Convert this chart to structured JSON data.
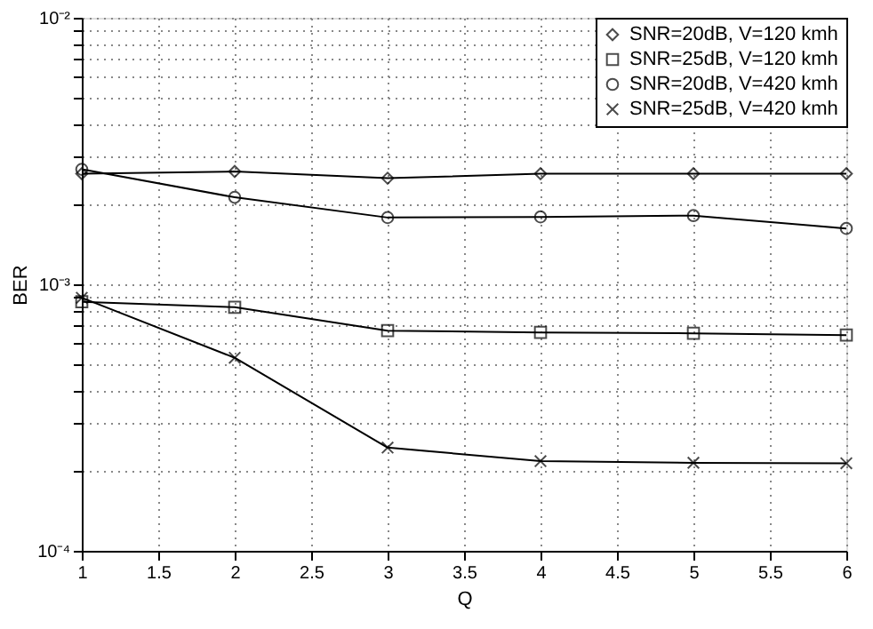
{
  "chart_data": {
    "type": "line",
    "xlabel": "Q",
    "ylabel": "BER",
    "x": [
      1,
      2,
      3,
      4,
      5,
      6
    ],
    "series": [
      {
        "name": "SNR=20dB, V=120 kmh",
        "color": "#000000",
        "marker": "diamond",
        "values": [
          0.0026,
          0.00265,
          0.0025,
          0.0026,
          0.0026,
          0.0026
        ]
      },
      {
        "name": "SNR=25dB, V=120 kmh",
        "color": "#000000",
        "marker": "square",
        "values": [
          0.00086,
          0.00082,
          0.00067,
          0.00066,
          0.000655,
          0.000645
        ]
      },
      {
        "name": "SNR=20dB, V=420 kmh",
        "color": "#000000",
        "marker": "circle",
        "values": [
          0.0027,
          0.00212,
          0.00178,
          0.00179,
          0.00181,
          0.00162
        ]
      },
      {
        "name": "SNR=25dB, V=420 kmh",
        "color": "#000000",
        "marker": "cross",
        "values": [
          0.00089,
          0.00053,
          0.000244,
          0.000217,
          0.000214,
          0.000213
        ]
      }
    ],
    "log": true,
    "xlim": [
      1,
      6
    ],
    "xticks": [
      1,
      1.5,
      2,
      2.5,
      3,
      3.5,
      4,
      4.5,
      5,
      5.5,
      6
    ],
    "ylim": [
      0.0001,
      0.01
    ],
    "yticks": [
      {
        "value": 0.0001,
        "label": "10⁻⁴"
      },
      {
        "value": 0.0002,
        "label": null
      },
      {
        "value": 0.0003,
        "label": null
      },
      {
        "value": 0.0004,
        "label": null
      },
      {
        "value": 0.0005,
        "label": null
      },
      {
        "value": 0.0006,
        "label": null
      },
      {
        "value": 0.0007,
        "label": null
      },
      {
        "value": 0.0008,
        "label": null
      },
      {
        "value": 0.0009,
        "label": null
      },
      {
        "value": 0.001,
        "label": "10⁻³"
      },
      {
        "value": 0.002,
        "label": null
      },
      {
        "value": 0.003,
        "label": null
      },
      {
        "value": 0.004,
        "label": null
      },
      {
        "value": 0.005,
        "label": null
      },
      {
        "value": 0.006,
        "label": null
      },
      {
        "value": 0.007,
        "label": null
      },
      {
        "value": 0.008,
        "label": null
      },
      {
        "value": 0.009,
        "label": null
      },
      {
        "value": 0.01,
        "label": "10⁻²"
      }
    ],
    "grid": true,
    "legend": "top right",
    "line_style": "solid"
  }
}
